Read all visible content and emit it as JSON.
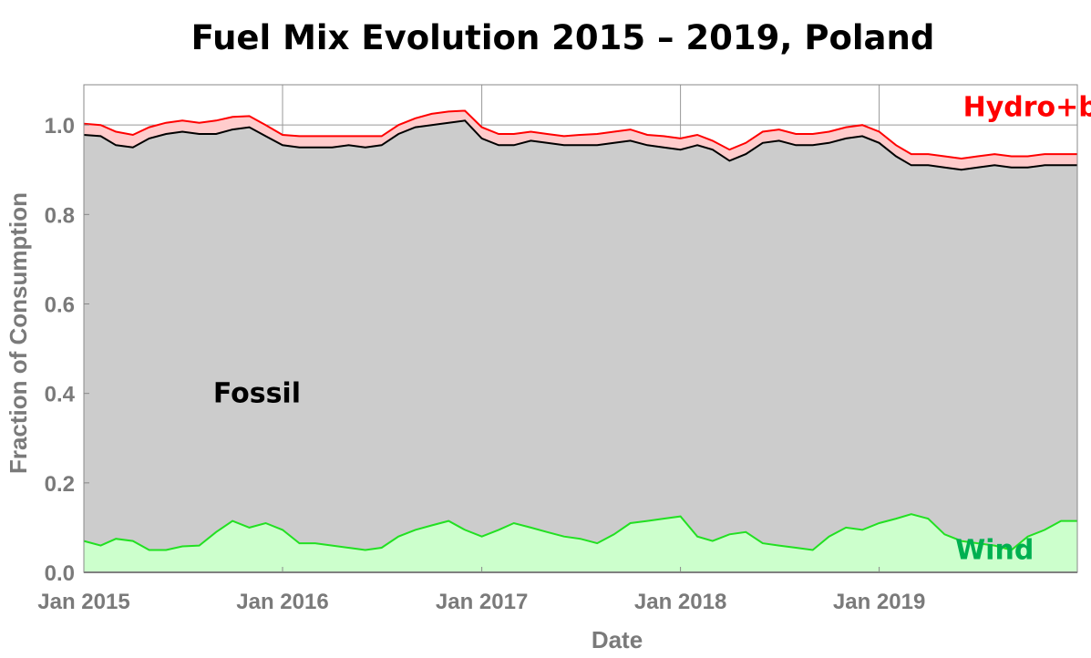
{
  "chart_data": {
    "type": "area",
    "title": "Fuel Mix Evolution 2015 – 2019, Poland",
    "xlabel": "Date",
    "ylabel": "Fraction of Consumption",
    "xlim": [
      "2015-01-01",
      "2019-12-31"
    ],
    "ylim": [
      0,
      1.09
    ],
    "x_ticks": [
      {
        "date": "2015-01-01",
        "label": "Jan 2015"
      },
      {
        "date": "2016-01-01",
        "label": "Jan 2016"
      },
      {
        "date": "2017-01-01",
        "label": "Jan 2017"
      },
      {
        "date": "2018-01-01",
        "label": "Jan 2018"
      },
      {
        "date": "2019-01-01",
        "label": "Jan 2019"
      }
    ],
    "y_ticks": [
      {
        "value": 0.0,
        "label": "0.0"
      },
      {
        "value": 0.2,
        "label": "0.2"
      },
      {
        "value": 0.4,
        "label": "0.4"
      },
      {
        "value": 0.6,
        "label": "0.6"
      },
      {
        "value": 0.8,
        "label": "0.8"
      },
      {
        "value": 1.0,
        "label": "1.0"
      }
    ],
    "grid": true,
    "annotations": [
      {
        "text": "Fossil",
        "color": "#000000",
        "date": "2015-11-15",
        "y": 0.38
      },
      {
        "text": "Wind",
        "color": "#00b050",
        "date": "2019-08-01",
        "y": 0.03
      },
      {
        "text": "Hydro+bio",
        "color": "#ff0000",
        "date": "2019-11-01",
        "y": 1.02
      }
    ],
    "colors": {
      "wind_line": "#22e022",
      "wind_fill": "#ccffcc",
      "fossil_line": "#000000",
      "fossil_fill": "#cccccc",
      "hydro_line": "#ff0000",
      "hydro_fill": "#ffcccc",
      "grid": "#999999",
      "axis_text": "#7a7a7a",
      "zero_line": "#777777"
    },
    "x": [
      "2015-01-01",
      "2015-02-01",
      "2015-03-01",
      "2015-04-01",
      "2015-05-01",
      "2015-06-01",
      "2015-07-01",
      "2015-08-01",
      "2015-09-01",
      "2015-10-01",
      "2015-11-01",
      "2015-12-01",
      "2016-01-01",
      "2016-02-01",
      "2016-03-01",
      "2016-04-01",
      "2016-05-01",
      "2016-06-01",
      "2016-07-01",
      "2016-08-01",
      "2016-09-01",
      "2016-10-01",
      "2016-11-01",
      "2016-12-01",
      "2017-01-01",
      "2017-02-01",
      "2017-03-01",
      "2017-04-01",
      "2017-05-01",
      "2017-06-01",
      "2017-07-01",
      "2017-08-01",
      "2017-09-01",
      "2017-10-01",
      "2017-11-01",
      "2017-12-01",
      "2018-01-01",
      "2018-02-01",
      "2018-03-01",
      "2018-04-01",
      "2018-05-01",
      "2018-06-01",
      "2018-07-01",
      "2018-08-01",
      "2018-09-01",
      "2018-10-01",
      "2018-11-01",
      "2018-12-01",
      "2019-01-01",
      "2019-02-01",
      "2019-03-01",
      "2019-04-01",
      "2019-05-01",
      "2019-06-01",
      "2019-07-01",
      "2019-08-01",
      "2019-09-01",
      "2019-10-01",
      "2019-11-01",
      "2019-12-01",
      "2019-12-31"
    ],
    "series": [
      {
        "name": "Wind",
        "values": [
          0.07,
          0.06,
          0.075,
          0.07,
          0.05,
          0.05,
          0.058,
          0.06,
          0.09,
          0.115,
          0.1,
          0.11,
          0.095,
          0.065,
          0.065,
          0.06,
          0.055,
          0.05,
          0.055,
          0.08,
          0.095,
          0.105,
          0.115,
          0.095,
          0.08,
          0.095,
          0.11,
          0.1,
          0.09,
          0.08,
          0.075,
          0.065,
          0.085,
          0.11,
          0.115,
          0.12,
          0.125,
          0.08,
          0.07,
          0.085,
          0.09,
          0.065,
          0.06,
          0.055,
          0.05,
          0.08,
          0.1,
          0.095,
          0.11,
          0.12,
          0.13,
          0.12,
          0.085,
          0.07,
          0.065,
          0.06,
          0.05,
          0.08,
          0.095,
          0.115,
          0.115
        ]
      },
      {
        "name": "Fossil",
        "values": [
          0.978,
          0.975,
          0.955,
          0.95,
          0.97,
          0.98,
          0.985,
          0.98,
          0.98,
          0.99,
          0.995,
          0.975,
          0.955,
          0.95,
          0.95,
          0.95,
          0.955,
          0.95,
          0.955,
          0.98,
          0.995,
          1.0,
          1.005,
          1.01,
          0.97,
          0.955,
          0.955,
          0.965,
          0.96,
          0.955,
          0.955,
          0.955,
          0.96,
          0.965,
          0.955,
          0.95,
          0.945,
          0.955,
          0.945,
          0.92,
          0.935,
          0.96,
          0.965,
          0.955,
          0.955,
          0.96,
          0.97,
          0.975,
          0.96,
          0.93,
          0.91,
          0.91,
          0.905,
          0.9,
          0.905,
          0.91,
          0.905,
          0.905,
          0.91,
          0.91,
          0.91
        ]
      },
      {
        "name": "Hydro+bio",
        "values": [
          1.003,
          1.0,
          0.985,
          0.978,
          0.995,
          1.005,
          1.01,
          1.005,
          1.01,
          1.018,
          1.02,
          1.0,
          0.978,
          0.975,
          0.975,
          0.975,
          0.975,
          0.975,
          0.975,
          1.0,
          1.015,
          1.025,
          1.03,
          1.032,
          0.995,
          0.98,
          0.98,
          0.985,
          0.98,
          0.975,
          0.978,
          0.98,
          0.985,
          0.99,
          0.978,
          0.975,
          0.97,
          0.978,
          0.965,
          0.945,
          0.96,
          0.985,
          0.99,
          0.98,
          0.98,
          0.985,
          0.995,
          1.0,
          0.985,
          0.955,
          0.935,
          0.935,
          0.93,
          0.925,
          0.93,
          0.935,
          0.93,
          0.93,
          0.935,
          0.935,
          0.935
        ]
      }
    ]
  }
}
